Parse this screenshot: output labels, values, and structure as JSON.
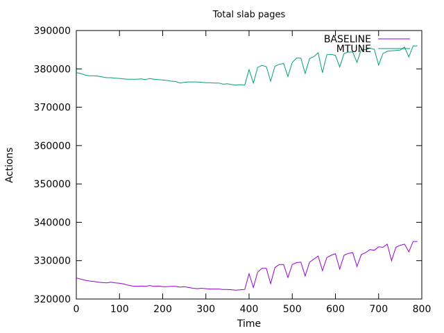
{
  "chart_data": {
    "type": "line",
    "title": "Total slab pages",
    "xlabel": "Time",
    "ylabel": "Actions",
    "xlim": [
      0,
      800
    ],
    "ylim": [
      320000,
      390000
    ],
    "x_ticks": [
      0,
      100,
      200,
      300,
      400,
      500,
      600,
      700,
      800
    ],
    "y_ticks": [
      320000,
      330000,
      340000,
      350000,
      360000,
      370000,
      380000,
      390000
    ],
    "grid": false,
    "legend_position": "top-right",
    "series": [
      {
        "name": "BASELINE",
        "color": "#9400d3",
        "x": [
          0,
          10,
          20,
          30,
          40,
          50,
          60,
          70,
          80,
          90,
          100,
          110,
          120,
          130,
          140,
          150,
          160,
          170,
          180,
          190,
          200,
          210,
          220,
          230,
          240,
          250,
          260,
          270,
          280,
          290,
          300,
          310,
          320,
          330,
          340,
          350,
          360,
          370,
          380,
          390,
          400,
          410,
          420,
          430,
          440,
          450,
          460,
          470,
          480,
          490,
          500,
          510,
          520,
          530,
          540,
          550,
          560,
          570,
          580,
          590,
          600,
          610,
          620,
          630,
          640,
          650,
          660,
          670,
          680,
          690,
          700,
          710,
          720,
          730,
          740,
          750,
          760,
          770,
          780,
          790
        ],
        "y": [
          325500,
          325200,
          324900,
          324700,
          324600,
          324400,
          324300,
          324200,
          324400,
          324200,
          324100,
          323900,
          323600,
          323400,
          323300,
          323400,
          323300,
          323500,
          323300,
          323400,
          323200,
          323200,
          323300,
          323300,
          323100,
          323200,
          323000,
          322800,
          322700,
          322800,
          322700,
          322600,
          322600,
          322600,
          322500,
          322500,
          322400,
          322300,
          322400,
          322500,
          326600,
          323000,
          327000,
          328000,
          328000,
          324000,
          328200,
          329000,
          329000,
          325600,
          329000,
          329500,
          329600,
          326000,
          329600,
          330400,
          331200,
          327400,
          330800,
          331400,
          331800,
          327800,
          331400,
          331900,
          332100,
          328500,
          331600,
          332100,
          332900,
          332700,
          333600,
          333500,
          334300,
          330000,
          333500,
          334000,
          334300,
          332300,
          335000,
          335000
        ]
      },
      {
        "name": "MTUNE",
        "color": "#009e73",
        "x": [
          0,
          10,
          20,
          30,
          40,
          50,
          60,
          70,
          80,
          90,
          100,
          110,
          120,
          130,
          140,
          150,
          160,
          170,
          180,
          190,
          200,
          210,
          220,
          230,
          240,
          250,
          260,
          270,
          280,
          290,
          300,
          310,
          320,
          330,
          340,
          350,
          360,
          370,
          380,
          390,
          400,
          410,
          420,
          430,
          440,
          450,
          460,
          470,
          480,
          490,
          500,
          510,
          520,
          530,
          540,
          550,
          560,
          570,
          580,
          590,
          600,
          610,
          620,
          630,
          640,
          650,
          660,
          670,
          680,
          690,
          700,
          710,
          720,
          730,
          740,
          750,
          760,
          770,
          780,
          790
        ],
        "y": [
          379000,
          378800,
          378400,
          378200,
          378200,
          378100,
          377900,
          377700,
          377700,
          377600,
          377500,
          377400,
          377300,
          377300,
          377300,
          377400,
          377200,
          377500,
          377300,
          377200,
          377100,
          377000,
          376800,
          376700,
          376300,
          376500,
          376600,
          376600,
          376600,
          376500,
          376400,
          376400,
          376300,
          376300,
          376000,
          376100,
          375900,
          375800,
          375900,
          375800,
          379800,
          376300,
          380400,
          380900,
          380600,
          376800,
          380700,
          381200,
          381400,
          378000,
          381700,
          382800,
          382800,
          378800,
          382700,
          383200,
          384200,
          379000,
          383700,
          383800,
          383500,
          380500,
          384000,
          384400,
          384400,
          381700,
          385100,
          385000,
          385400,
          385100,
          381000,
          384000,
          384600,
          384700,
          384800,
          384900,
          385700,
          383100,
          386000,
          386000
        ]
      }
    ]
  }
}
